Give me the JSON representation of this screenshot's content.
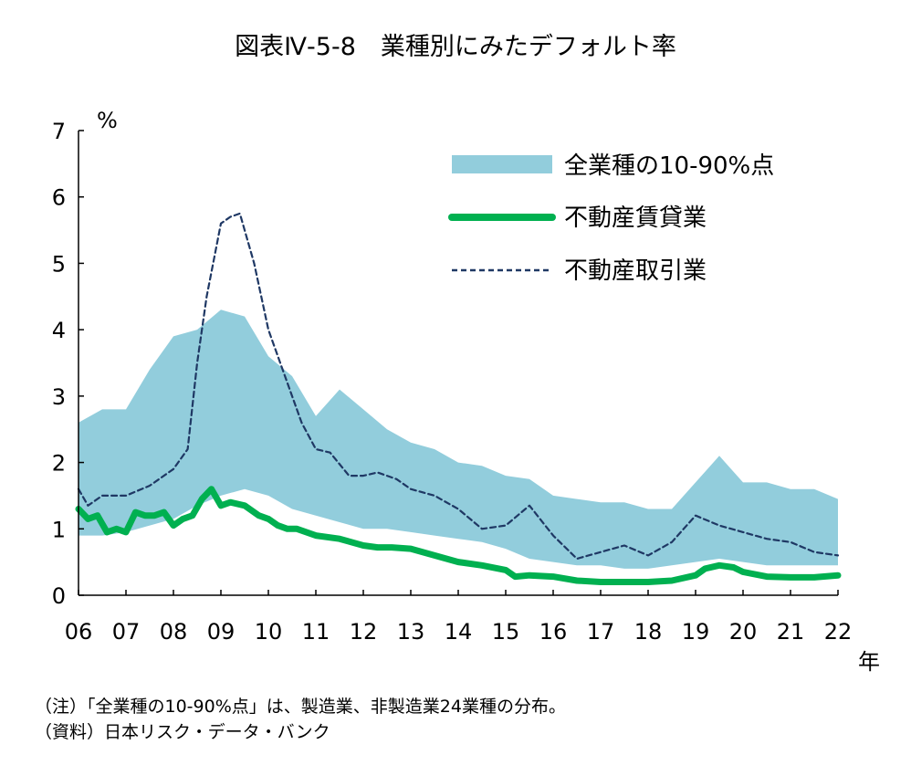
{
  "title": "図表Ⅳ-5-8　業種別にみたデフォルト率",
  "y_unit": "%",
  "x_unit": "年",
  "notes": {
    "note": "（注）「全業種の10-90%点」は、製造業、非製造業24業種の分布。",
    "source": "（資料）日本リスク・データ・バンク"
  },
  "colors": {
    "band": "#92CDDC",
    "rental": "#00B050",
    "brokerage": "#1F3864"
  },
  "chart_data": {
    "type": "line",
    "title": "図表Ⅳ-5-8　業種別にみたデフォルト率",
    "xlabel": "年",
    "ylabel": "%",
    "xlim": [
      2006,
      2022
    ],
    "ylim": [
      0,
      7
    ],
    "yticks": [
      "0",
      "1",
      "2",
      "3",
      "4",
      "5",
      "6",
      "7"
    ],
    "xticks": [
      {
        "value": 2006,
        "label": "06"
      },
      {
        "value": 2007,
        "label": "07"
      },
      {
        "value": 2008,
        "label": "08"
      },
      {
        "value": 2009,
        "label": "09"
      },
      {
        "value": 2010,
        "label": "10"
      },
      {
        "value": 2011,
        "label": "11"
      },
      {
        "value": 2012,
        "label": "12"
      },
      {
        "value": 2013,
        "label": "13"
      },
      {
        "value": 2014,
        "label": "14"
      },
      {
        "value": 2015,
        "label": "15"
      },
      {
        "value": 2016,
        "label": "16"
      },
      {
        "value": 2017,
        "label": "17"
      },
      {
        "value": 2018,
        "label": "18"
      },
      {
        "value": 2019,
        "label": "19"
      },
      {
        "value": 2020,
        "label": "20"
      },
      {
        "value": 2021,
        "label": "21"
      },
      {
        "value": 2022,
        "label": "22"
      }
    ],
    "legend_position": "top-right",
    "band": {
      "name": "全業種の10-90%点",
      "x": [
        2006,
        2006.5,
        2007,
        2007.5,
        2008,
        2008.5,
        2009,
        2009.5,
        2010,
        2010.5,
        2011,
        2011.5,
        2012,
        2012.5,
        2013,
        2013.5,
        2014,
        2014.5,
        2015,
        2015.5,
        2016,
        2016.5,
        2017,
        2017.5,
        2018,
        2018.5,
        2019,
        2019.5,
        2020,
        2020.5,
        2021,
        2021.5,
        2022
      ],
      "upper": [
        2.6,
        2.8,
        2.8,
        3.4,
        3.9,
        4.0,
        4.3,
        4.2,
        3.6,
        3.3,
        2.7,
        3.1,
        2.8,
        2.5,
        2.3,
        2.2,
        2.0,
        1.95,
        1.8,
        1.75,
        1.5,
        1.45,
        1.4,
        1.4,
        1.3,
        1.3,
        1.7,
        2.1,
        1.7,
        1.7,
        1.6,
        1.6,
        1.45
      ],
      "lower": [
        0.9,
        0.9,
        0.95,
        1.05,
        1.15,
        1.35,
        1.5,
        1.6,
        1.5,
        1.3,
        1.2,
        1.1,
        1.0,
        1.0,
        0.95,
        0.9,
        0.85,
        0.8,
        0.7,
        0.55,
        0.5,
        0.45,
        0.45,
        0.4,
        0.4,
        0.45,
        0.5,
        0.55,
        0.5,
        0.45,
        0.45,
        0.45,
        0.45
      ]
    },
    "series": [
      {
        "name": "不動産賃貸業",
        "style": "solid",
        "x": [
          2006,
          2006.2,
          2006.4,
          2006.6,
          2006.8,
          2007,
          2007.2,
          2007.4,
          2007.6,
          2007.8,
          2008,
          2008.2,
          2008.4,
          2008.6,
          2008.8,
          2009,
          2009.2,
          2009.5,
          2009.8,
          2010,
          2010.2,
          2010.4,
          2010.6,
          2011,
          2011.5,
          2012,
          2012.3,
          2012.6,
          2013,
          2013.5,
          2014,
          2014.5,
          2015,
          2015.2,
          2015.5,
          2016,
          2016.5,
          2017,
          2017.5,
          2018,
          2018.5,
          2019,
          2019.2,
          2019.5,
          2019.8,
          2020,
          2020.5,
          2021,
          2021.5,
          2022
        ],
        "values": [
          1.3,
          1.15,
          1.2,
          0.95,
          1.0,
          0.95,
          1.25,
          1.2,
          1.2,
          1.25,
          1.05,
          1.15,
          1.2,
          1.45,
          1.6,
          1.35,
          1.4,
          1.35,
          1.2,
          1.15,
          1.05,
          1.0,
          1.0,
          0.9,
          0.85,
          0.75,
          0.72,
          0.72,
          0.7,
          0.6,
          0.5,
          0.45,
          0.38,
          0.28,
          0.3,
          0.28,
          0.22,
          0.2,
          0.2,
          0.2,
          0.22,
          0.3,
          0.4,
          0.45,
          0.42,
          0.35,
          0.28,
          0.27,
          0.27,
          0.3
        ]
      },
      {
        "name": "不動産取引業",
        "style": "dashed",
        "x": [
          2006,
          2006.2,
          2006.5,
          2007,
          2007.5,
          2008,
          2008.3,
          2008.5,
          2008.7,
          2009,
          2009.2,
          2009.4,
          2009.7,
          2010,
          2010.3,
          2010.7,
          2011,
          2011.3,
          2011.7,
          2012,
          2012.3,
          2012.7,
          2013,
          2013.5,
          2014,
          2014.5,
          2015,
          2015.5,
          2016,
          2016.5,
          2017,
          2017.5,
          2018,
          2018.5,
          2019,
          2019.5,
          2020,
          2020.5,
          2021,
          2021.5,
          2022
        ],
        "values": [
          1.6,
          1.35,
          1.5,
          1.5,
          1.65,
          1.9,
          2.2,
          3.5,
          4.5,
          5.6,
          5.7,
          5.75,
          5.0,
          4.0,
          3.4,
          2.6,
          2.2,
          2.15,
          1.8,
          1.8,
          1.85,
          1.75,
          1.6,
          1.5,
          1.3,
          1.0,
          1.05,
          1.35,
          0.9,
          0.55,
          0.65,
          0.75,
          0.6,
          0.8,
          1.2,
          1.05,
          0.95,
          0.85,
          0.8,
          0.65,
          0.6
        ]
      }
    ]
  }
}
